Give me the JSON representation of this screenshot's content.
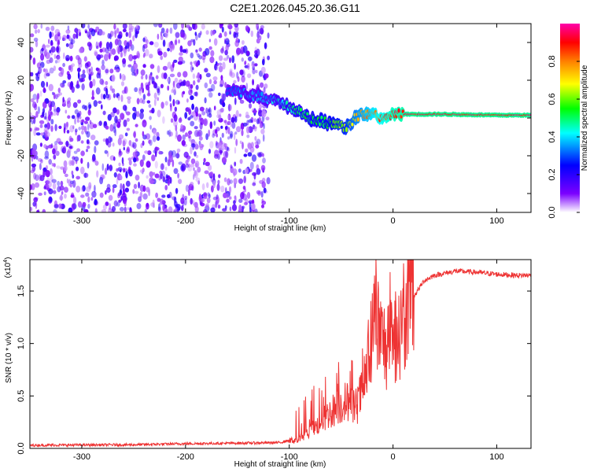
{
  "title": "C2E1.2026.045.20.36.G11",
  "chart_data": [
    {
      "type": "heatmap",
      "xlabel": "Height of straight line (km)",
      "ylabel": "Frequency (Hz)",
      "xlim": [
        -350,
        133
      ],
      "ylim": [
        -50,
        50
      ],
      "x_ticks": [
        -300,
        -200,
        -100,
        0,
        100
      ],
      "y_ticks": [
        -40,
        -20,
        0,
        20,
        40
      ],
      "colorbar": {
        "label": "Normalized spectral amplitude",
        "range": [
          0,
          1
        ],
        "ticks": [
          0.0,
          0.2,
          0.4,
          0.6,
          0.8
        ],
        "tick_labels": [
          "0.0",
          "0.2",
          "0.4",
          "0.6",
          "0.8"
        ],
        "colormap": [
          "#ffffff",
          "#7b00ff",
          "#0000ff",
          "#00ffff",
          "#00ff00",
          "#ffff00",
          "#ff8000",
          "#ff0000",
          "#ff00aa"
        ]
      },
      "noise_region": {
        "x": [
          -350,
          -120
        ],
        "amplitude": 0.2
      },
      "signal_track": {
        "x": [
          -160,
          -140,
          -120,
          -100,
          -80,
          -60,
          -45,
          -35,
          -20,
          -10,
          0,
          20,
          50,
          100,
          133
        ],
        "frequency": [
          15,
          13,
          10,
          6,
          0,
          -3,
          -5,
          1,
          3,
          0,
          2,
          2,
          2,
          1.5,
          1.5
        ],
        "amplitude": [
          0.3,
          0.35,
          0.35,
          0.45,
          0.5,
          0.55,
          0.6,
          0.7,
          0.8,
          0.85,
          0.9,
          0.95,
          0.95,
          0.95,
          0.95
        ]
      }
    },
    {
      "type": "line",
      "xlabel": "Height of straight line (km)",
      "ylabel": "SNR (10 * v/v)",
      "y_multiplier_label": "(x10",
      "y_multiplier_exponent": "4",
      "xlim": [
        -350,
        133
      ],
      "ylim": [
        0,
        18000
      ],
      "x_ticks": [
        -300,
        -200,
        -100,
        0,
        100
      ],
      "y_ticks": [
        0,
        5000,
        10000,
        15000
      ],
      "y_tick_labels": [
        "0.0",
        "0.5",
        "1.0",
        "1.5"
      ],
      "color": "#ee3333",
      "series": [
        {
          "x": [
            -350,
            -250,
            -200,
            -150,
            -110,
            -90,
            -75,
            -60,
            -45,
            -35,
            -28,
            -22,
            -17,
            -12,
            -5,
            0,
            10,
            20,
            30,
            40,
            60,
            80,
            100,
            120,
            133
          ],
          "y": [
            250,
            300,
            400,
            450,
            500,
            900,
            2000,
            3500,
            4500,
            4000,
            6000,
            9000,
            13000,
            10500,
            9500,
            10000,
            12000,
            14500,
            16000,
            16500,
            16900,
            16800,
            16600,
            16500,
            16500
          ]
        }
      ]
    }
  ]
}
